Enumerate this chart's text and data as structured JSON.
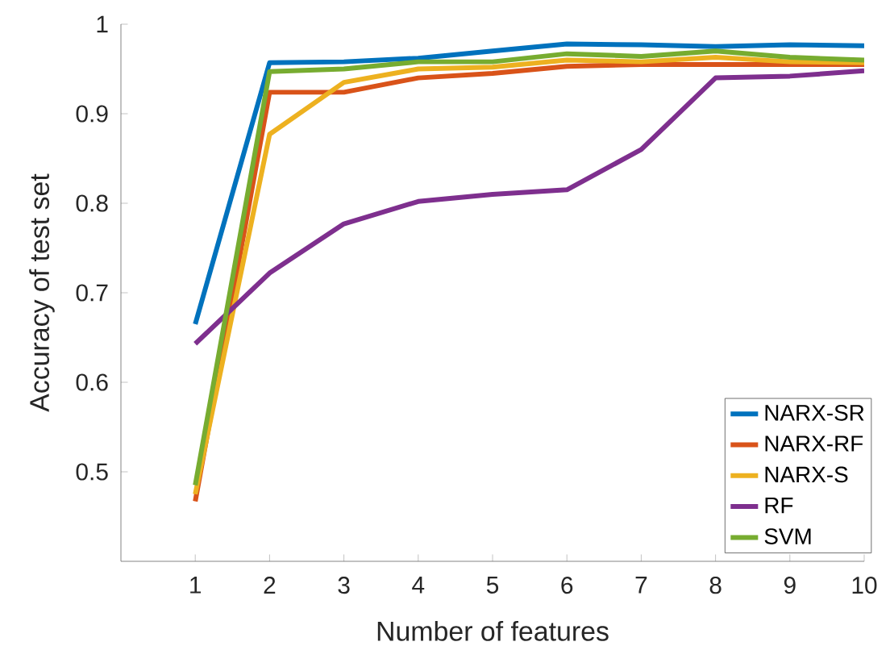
{
  "chart_data": {
    "type": "line",
    "xlabel": "Number of features",
    "ylabel": "Accuracy of test set",
    "x": [
      1,
      2,
      3,
      4,
      5,
      6,
      7,
      8,
      9,
      10
    ],
    "series": [
      {
        "name": "NARX-SR",
        "color": "#0072bd",
        "values": [
          0.665,
          0.957,
          0.958,
          0.962,
          0.97,
          0.978,
          0.977,
          0.975,
          0.977,
          0.976
        ]
      },
      {
        "name": "NARX-RF",
        "color": "#d95319",
        "values": [
          0.467,
          0.924,
          0.924,
          0.94,
          0.945,
          0.953,
          0.955,
          0.955,
          0.955,
          0.955
        ]
      },
      {
        "name": "NARX-S",
        "color": "#edb120",
        "values": [
          0.475,
          0.877,
          0.935,
          0.95,
          0.952,
          0.96,
          0.958,
          0.963,
          0.958,
          0.957
        ]
      },
      {
        "name": "RF",
        "color": "#7e2f8e",
        "values": [
          0.643,
          0.722,
          0.777,
          0.802,
          0.81,
          0.815,
          0.86,
          0.94,
          0.942,
          0.948
        ]
      },
      {
        "name": "SVM",
        "color": "#77ac30",
        "values": [
          0.485,
          0.947,
          0.95,
          0.958,
          0.958,
          0.967,
          0.964,
          0.97,
          0.963,
          0.96
        ]
      }
    ],
    "xlim": [
      0,
      10
    ],
    "ylim": [
      0.4,
      1
    ],
    "xticks": [
      1,
      2,
      3,
      4,
      5,
      6,
      7,
      8,
      9,
      10
    ],
    "yticks": [
      0.5,
      0.6,
      0.7,
      0.8,
      0.9,
      1
    ],
    "legend": "bottom right",
    "grid": false,
    "marker": "none",
    "line_style": "solid"
  }
}
